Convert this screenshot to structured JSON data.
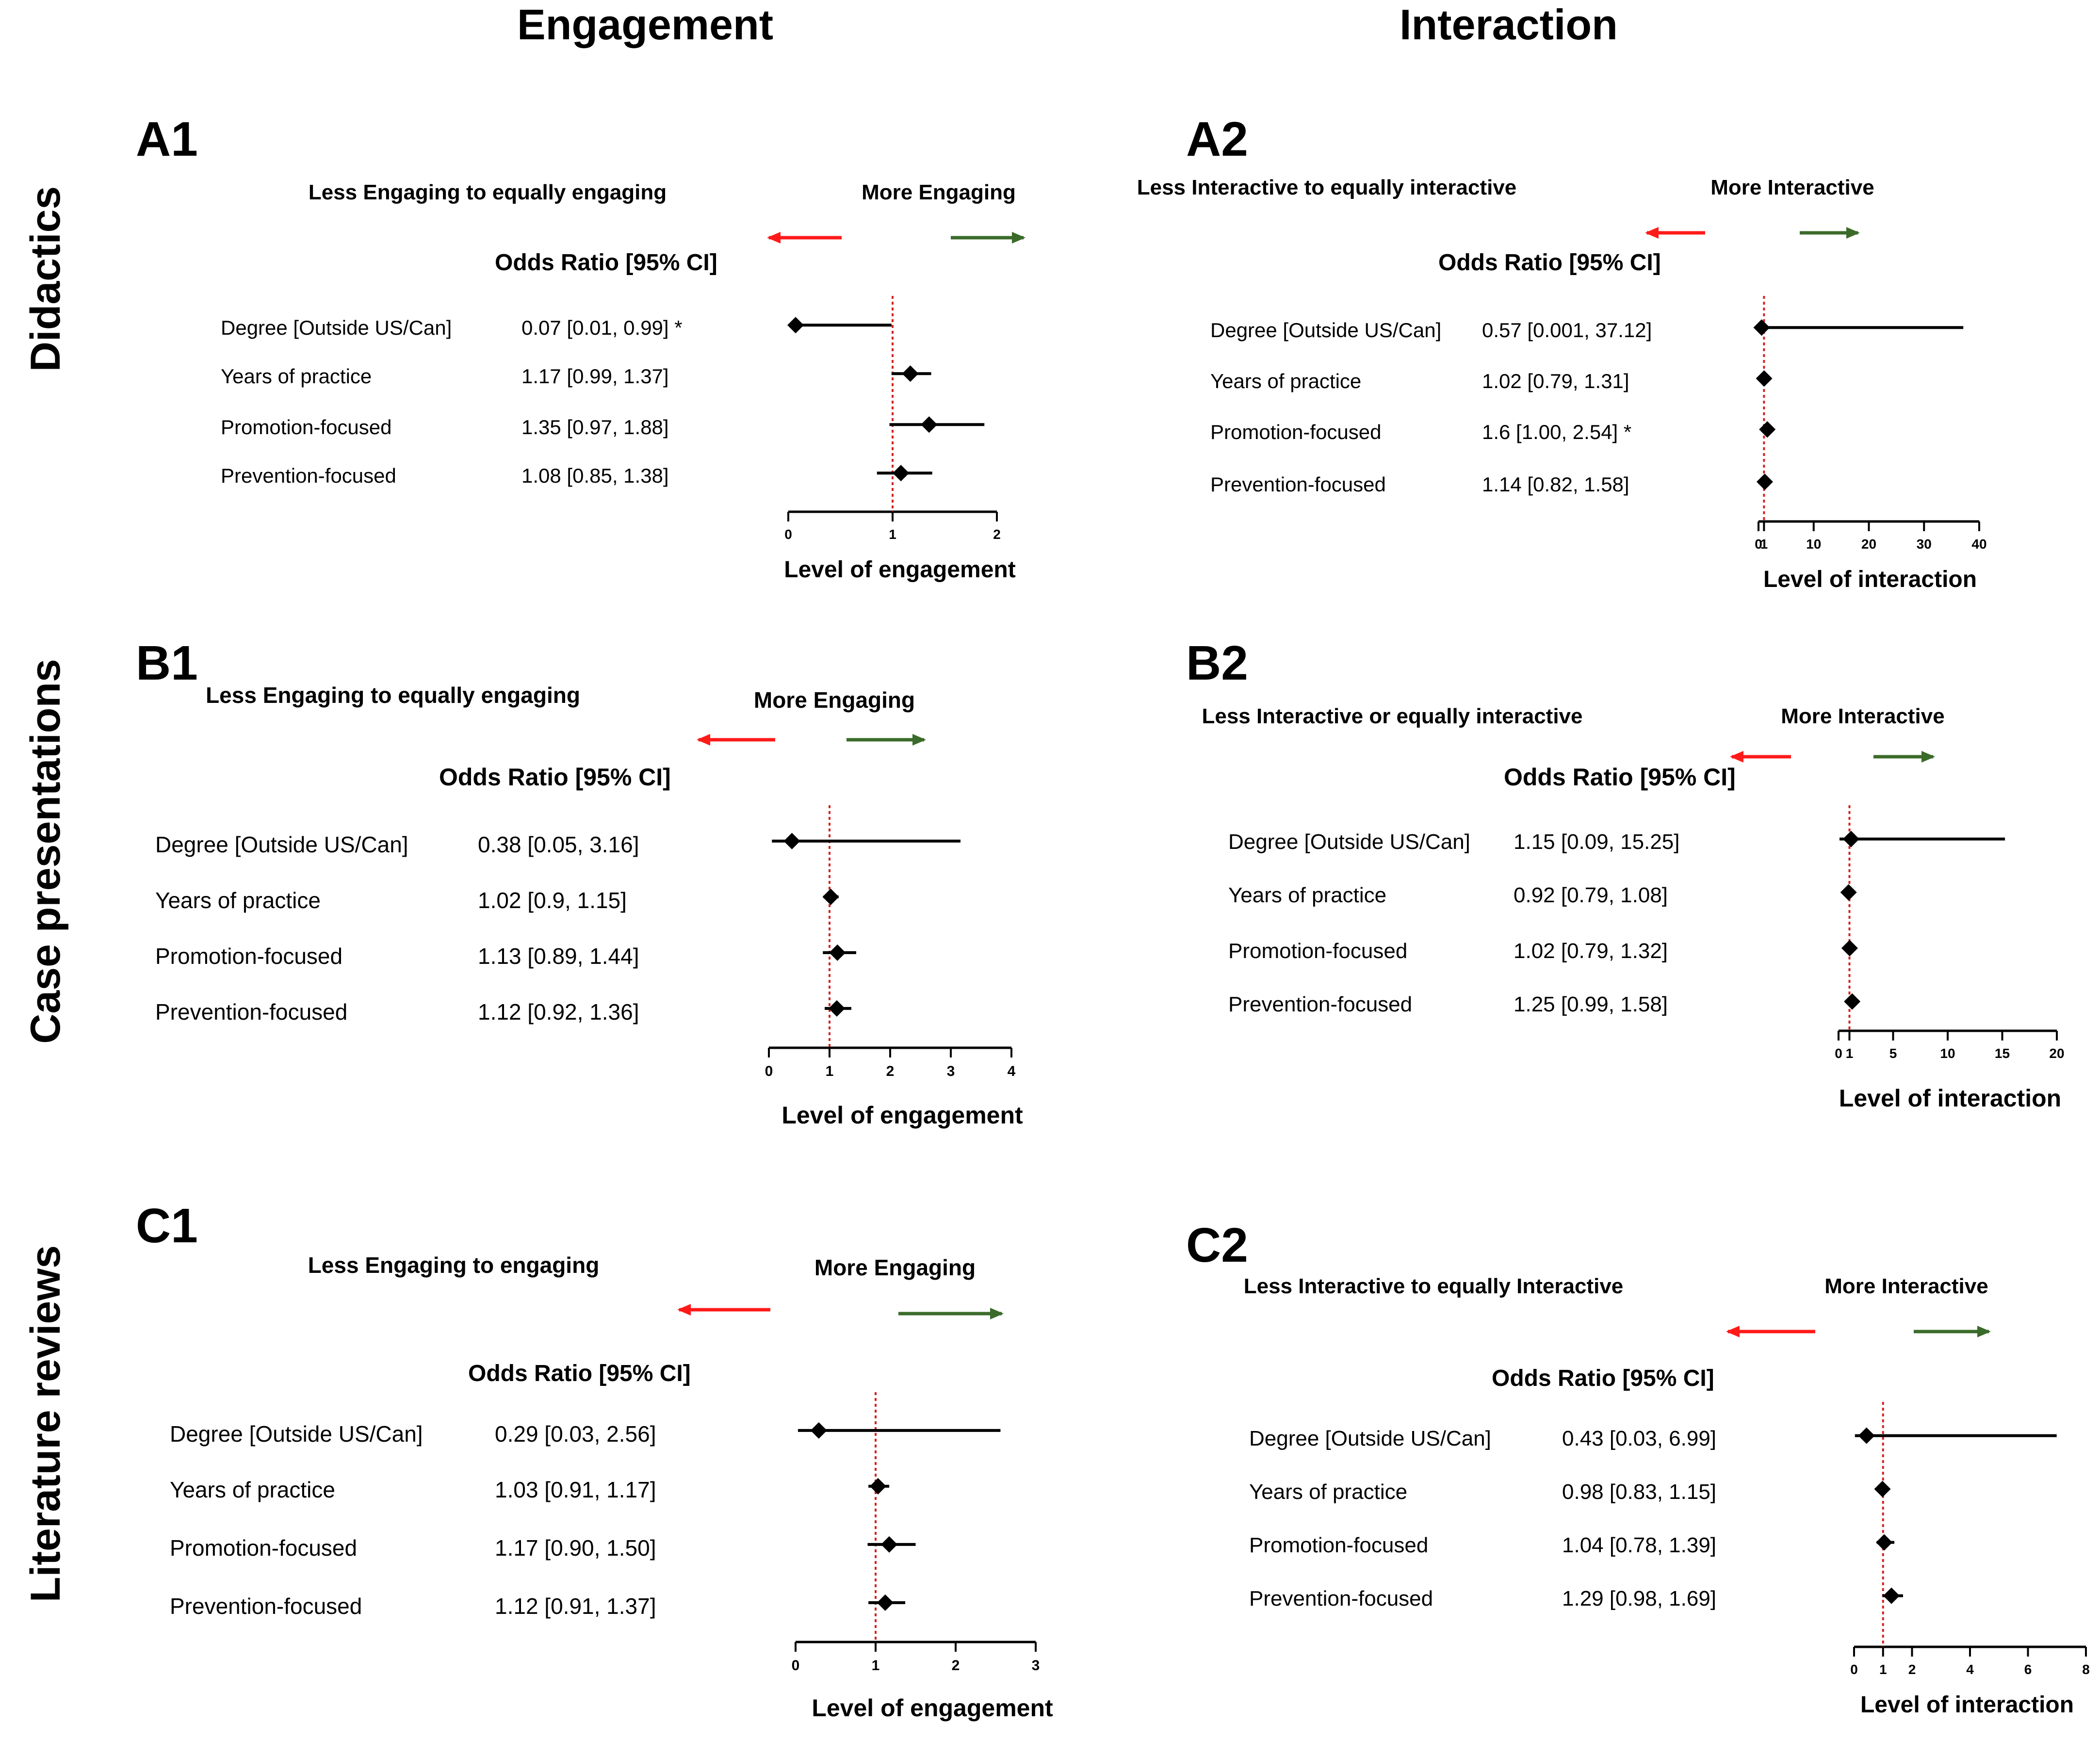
{
  "column_headers": [
    "Engagement",
    "Interaction"
  ],
  "row_headers": [
    "Didactics",
    "Case presentations",
    "Literature reviews"
  ],
  "colors": {
    "less_arrow": "#ff1a1a",
    "more_arrow": "#3b6b2a",
    "reference_line": "#d62020",
    "marks": "#000000"
  },
  "chart_data": [
    {
      "type": "forest",
      "panel": "A1",
      "left_header": "Less Engaging to equally engaging",
      "right_header": "More Engaging",
      "or_header": "Odds Ratio [95% CI]",
      "xlabel": "Level of engagement",
      "xlim": [
        0,
        2
      ],
      "xticks": [
        0,
        1,
        2
      ],
      "xtick_labels": [
        "0",
        "1",
        "2"
      ],
      "reference": 1,
      "rows": [
        {
          "predictor": "Degree [Outside US/Can]",
          "or_text": "0.07 [0.01, 0.99] *",
          "or": 0.07,
          "lo": 0.01,
          "hi": 0.99
        },
        {
          "predictor": "Years of practice",
          "or_text": "1.17 [0.99, 1.37]",
          "or": 1.17,
          "lo": 0.99,
          "hi": 1.37
        },
        {
          "predictor": "Promotion-focused",
          "or_text": "1.35 [0.97, 1.88]",
          "or": 1.35,
          "lo": 0.97,
          "hi": 1.88
        },
        {
          "predictor": "Prevention-focused",
          "or_text": "1.08 [0.85, 1.38]",
          "or": 1.08,
          "lo": 0.85,
          "hi": 1.38
        }
      ]
    },
    {
      "type": "forest",
      "panel": "A2",
      "left_header": "Less Interactive to equally interactive",
      "right_header": "More Interactive",
      "or_header": "Odds Ratio [95% CI]",
      "xlabel": "Level of interaction",
      "xlim": [
        0,
        40
      ],
      "xticks": [
        0,
        1,
        10,
        20,
        30,
        40
      ],
      "xtick_labels": [
        "0",
        "1",
        "10",
        "20",
        "30",
        "40"
      ],
      "reference": 1,
      "rows": [
        {
          "predictor": "Degree [Outside US/Can]",
          "or_text": "0.57 [0.001, 37.12]",
          "or": 0.57,
          "lo": 0.001,
          "hi": 37.12
        },
        {
          "predictor": "Years of practice",
          "or_text": "1.02 [0.79, 1.31]",
          "or": 1.02,
          "lo": 0.79,
          "hi": 1.31
        },
        {
          "predictor": "Promotion-focused",
          "or_text": "1.6 [1.00, 2.54] *",
          "or": 1.6,
          "lo": 1.0,
          "hi": 2.54
        },
        {
          "predictor": "Prevention-focused",
          "or_text": "1.14 [0.82, 1.58]",
          "or": 1.14,
          "lo": 0.82,
          "hi": 1.58
        }
      ]
    },
    {
      "type": "forest",
      "panel": "B1",
      "left_header": "Less Engaging to equally engaging",
      "right_header": "More Engaging",
      "or_header": "Odds Ratio [95% CI]",
      "xlabel": "Level of engagement",
      "xlim": [
        0,
        4
      ],
      "xticks": [
        0,
        1,
        2,
        3,
        4
      ],
      "xtick_labels": [
        "0",
        "1",
        "2",
        "3",
        "4"
      ],
      "reference": 1,
      "rows": [
        {
          "predictor": "Degree [Outside US/Can]",
          "or_text": "0.38 [0.05, 3.16]",
          "or": 0.38,
          "lo": 0.05,
          "hi": 3.16
        },
        {
          "predictor": "Years of practice",
          "or_text": "1.02 [0.9, 1.15]",
          "or": 1.02,
          "lo": 0.9,
          "hi": 1.15
        },
        {
          "predictor": "Promotion-focused",
          "or_text": "1.13 [0.89, 1.44]",
          "or": 1.13,
          "lo": 0.89,
          "hi": 1.44
        },
        {
          "predictor": "Prevention-focused",
          "or_text": "1.12 [0.92, 1.36]",
          "or": 1.12,
          "lo": 0.92,
          "hi": 1.36
        }
      ]
    },
    {
      "type": "forest",
      "panel": "B2",
      "left_header": "Less Interactive or equally interactive",
      "right_header": "More Interactive",
      "or_header": "Odds Ratio [95% CI]",
      "xlabel": "Level of interaction",
      "xlim": [
        0,
        20
      ],
      "xticks": [
        0,
        1,
        5,
        10,
        15,
        20
      ],
      "xtick_labels": [
        "0",
        "1",
        "5",
        "10",
        "15",
        "20"
      ],
      "reference": 1,
      "rows": [
        {
          "predictor": "Degree [Outside US/Can]",
          "or_text": "1.15 [0.09, 15.25]",
          "or": 1.15,
          "lo": 0.09,
          "hi": 15.25
        },
        {
          "predictor": "Years of practice",
          "or_text": "0.92 [0.79, 1.08]",
          "or": 0.92,
          "lo": 0.79,
          "hi": 1.08
        },
        {
          "predictor": "Promotion-focused",
          "or_text": "1.02 [0.79, 1.32]",
          "or": 1.02,
          "lo": 0.79,
          "hi": 1.32
        },
        {
          "predictor": "Prevention-focused",
          "or_text": "1.25 [0.99, 1.58]",
          "or": 1.25,
          "lo": 0.99,
          "hi": 1.58
        }
      ]
    },
    {
      "type": "forest",
      "panel": "C1",
      "left_header": "Less Engaging to engaging",
      "right_header": "More Engaging",
      "or_header": "Odds Ratio [95% CI]",
      "xlabel": "Level of engagement",
      "xlim": [
        0,
        3
      ],
      "xticks": [
        0,
        1,
        2,
        3
      ],
      "xtick_labels": [
        "0",
        "1",
        "2",
        "3"
      ],
      "reference": 1,
      "rows": [
        {
          "predictor": "Degree [Outside US/Can]",
          "or_text": "0.29 [0.03, 2.56]",
          "or": 0.29,
          "lo": 0.03,
          "hi": 2.56
        },
        {
          "predictor": "Years of practice",
          "or_text": "1.03 [0.91, 1.17]",
          "or": 1.03,
          "lo": 0.91,
          "hi": 1.17
        },
        {
          "predictor": "Promotion-focused",
          "or_text": "1.17 [0.90, 1.50]",
          "or": 1.17,
          "lo": 0.9,
          "hi": 1.5
        },
        {
          "predictor": "Prevention-focused",
          "or_text": "1.12 [0.91, 1.37]",
          "or": 1.12,
          "lo": 0.91,
          "hi": 1.37
        }
      ]
    },
    {
      "type": "forest",
      "panel": "C2",
      "left_header": "Less Interactive to equally Interactive",
      "right_header": "More Interactive",
      "or_header": "Odds Ratio [95% CI]",
      "xlabel": "Level of interaction",
      "xlim": [
        0,
        8
      ],
      "xticks": [
        0,
        1,
        2,
        4,
        6,
        8
      ],
      "xtick_labels": [
        "0",
        "1",
        "2",
        "4",
        "6",
        "8"
      ],
      "reference": 1,
      "rows": [
        {
          "predictor": "Degree [Outside US/Can]",
          "or_text": "0.43 [0.03, 6.99]",
          "or": 0.43,
          "lo": 0.03,
          "hi": 6.99
        },
        {
          "predictor": "Years of practice",
          "or_text": "0.98 [0.83, 1.15]",
          "or": 0.98,
          "lo": 0.83,
          "hi": 1.15
        },
        {
          "predictor": "Promotion-focused",
          "or_text": "1.04 [0.78, 1.39]",
          "or": 1.04,
          "lo": 0.78,
          "hi": 1.39
        },
        {
          "predictor": "Prevention-focused",
          "or_text": "1.29 [0.98, 1.69]",
          "or": 1.29,
          "lo": 0.98,
          "hi": 1.69
        }
      ]
    }
  ]
}
